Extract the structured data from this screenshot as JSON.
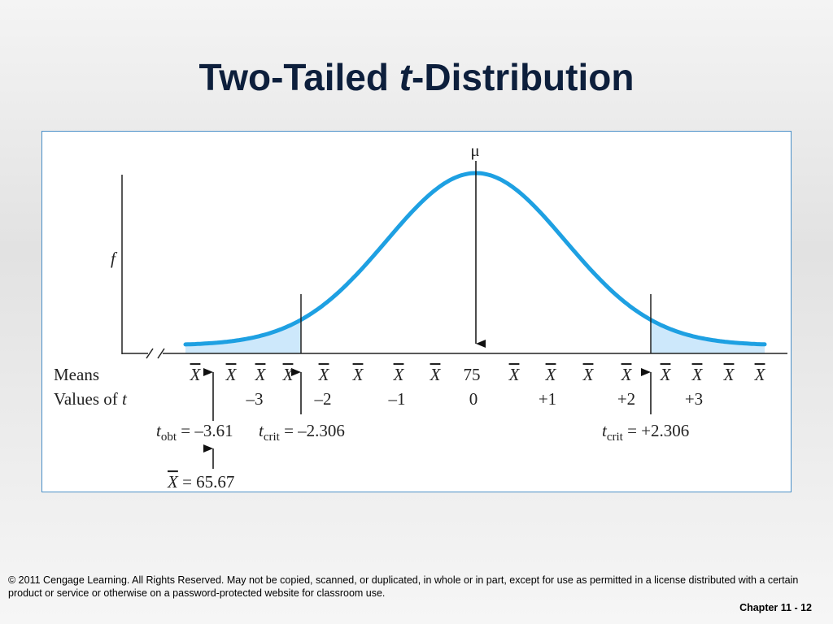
{
  "header": {
    "title": {
      "before": "Two-Tailed ",
      "italic": "t",
      "after": "-Distribution"
    }
  },
  "figure": {
    "mu": "μ",
    "y_label": "f",
    "means_label": "Means",
    "t_label": {
      "text": "Values of ",
      "var": "t"
    },
    "means": [
      "X",
      "X",
      "X",
      "X",
      "X",
      "X",
      "X",
      "X",
      "75",
      "X",
      "X",
      "X",
      "X",
      "X",
      "X",
      "X",
      "X"
    ],
    "t_values": [
      "–3",
      "–2",
      "–1",
      "0",
      "+1",
      "+2",
      "+3"
    ],
    "annotations": {
      "t_obt": {
        "var": "t",
        "sub": "obt",
        "text": " = –3.61"
      },
      "t_crit_low": {
        "var": "t",
        "sub": "crit",
        "text": " = –2.306"
      },
      "t_crit_high": {
        "var": "t",
        "sub": "crit",
        "text": " = +2.306"
      },
      "x_bar": {
        "var": "X",
        "text": " = 65.67"
      }
    }
  },
  "footer": {
    "copyright": "© 2011 Cengage Learning. All Rights Reserved. May not be copied, scanned, or duplicated, in whole or in part, except for use as permitted in a license distributed with a certain product or service or otherwise on a password-protected website for classroom use.",
    "page": "Chapter 11 - 12"
  }
}
